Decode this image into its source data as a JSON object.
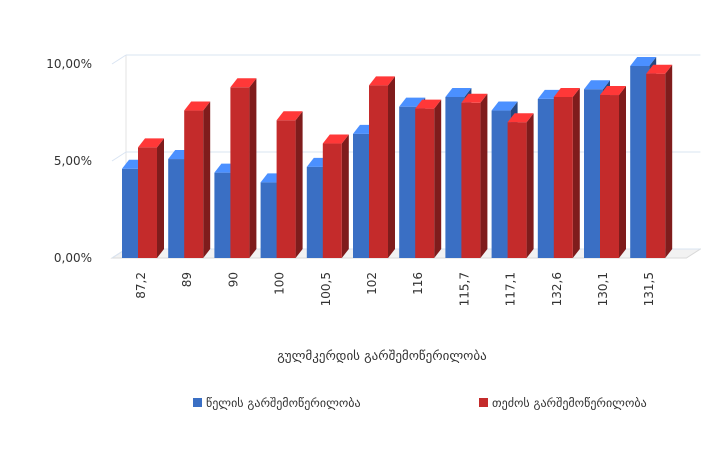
{
  "chart_data": {
    "type": "bar",
    "categories": [
      "87,2",
      "89",
      "90",
      "100",
      "100,5",
      "102",
      "116",
      "115,7",
      "117,1",
      "132,6",
      "130,1",
      "131,5"
    ],
    "series": [
      {
        "name": "წელის გარშემოწერილობა",
        "color": "#3a6fc4",
        "values": [
          0.046,
          0.051,
          0.044,
          0.039,
          0.047,
          0.064,
          0.078,
          0.083,
          0.076,
          0.082,
          0.087,
          0.099
        ]
      },
      {
        "name": "თეძოს გარშემოწერილობა",
        "color": "#c42b2b",
        "values": [
          0.057,
          0.076,
          0.088,
          0.071,
          0.059,
          0.089,
          0.077,
          0.08,
          0.07,
          0.083,
          0.084,
          0.095
        ]
      }
    ],
    "ylim": [
      0,
      0.1
    ],
    "yticks": [
      "0,00%",
      "5,00%",
      "10,00%"
    ],
    "xlabel": "გულმკერდის გარშემოწერილობა",
    "ylabel": "",
    "title": "",
    "grid": true,
    "legend": "bottom"
  }
}
